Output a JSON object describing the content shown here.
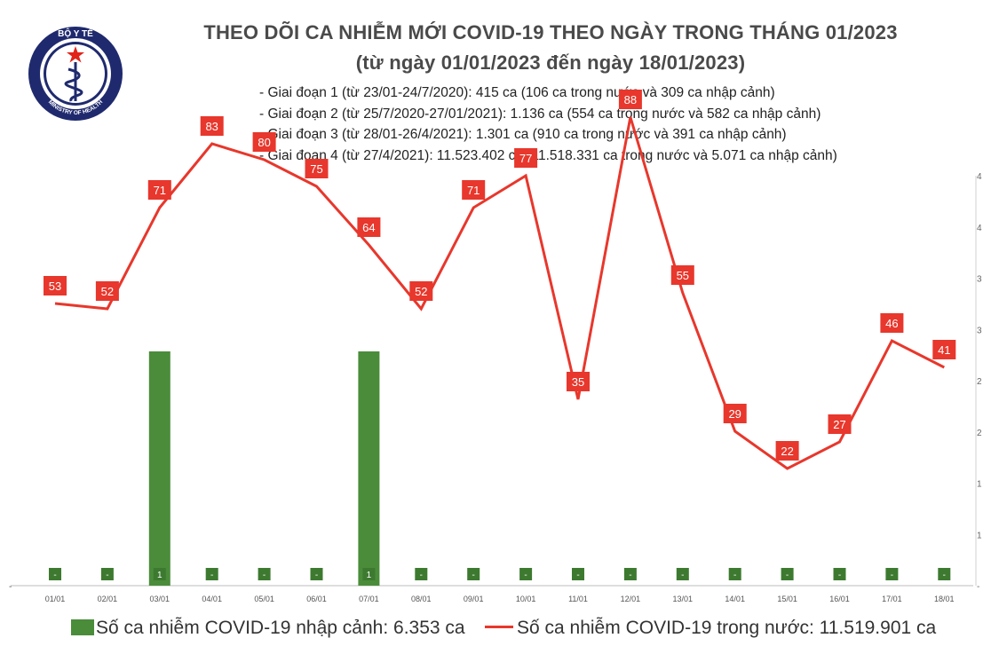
{
  "header": {
    "title_line1": "THEO DÕI CA NHIỄM MỚI COVID-19 THEO NGÀY TRONG THÁNG 01/2023",
    "title_line2": "(từ ngày 01/01/2023 đến ngày 18/01/2023)",
    "phases": [
      "- Giai đoạn 1 (từ 23/01-24/7/2020): 415 ca (106 ca trong nước và 309 ca nhập cảnh)",
      "- Giai đoạn 2 (từ 25/7/2020-27/01/2021): 1.136 ca (554 ca trong nước và 582 ca nhập cảnh)",
      "- Giai đoạn 3 (từ 28/01-26/4/2021): 1.301 ca (910 ca trong nước và 391 ca nhập cảnh)",
      "- Giai đoạn 4 (từ 27/4/2021): 11.523.402 ca (11.518.331 ca trong nước và 5.071 ca nhập cảnh)"
    ]
  },
  "logo": {
    "text_top": "BỘ Y TẾ",
    "text_bottom": "MINISTRY OF HEALTH",
    "colors": {
      "ring": "#1f2a6e",
      "fill": "#ffffff",
      "star": "#e2231a"
    }
  },
  "legend": {
    "bar_label": "Số ca nhiễm COVID-19 nhập cảnh: 6.353 ca",
    "line_label": "Số ca nhiễm COVID-19 trong nước: 11.519.901 ca"
  },
  "chart_data": {
    "type": "bar+line",
    "categories": [
      "01/01",
      "02/01",
      "03/01",
      "04/01",
      "05/01",
      "06/01",
      "07/01",
      "08/01",
      "09/01",
      "10/01",
      "11/01",
      "12/01",
      "13/01",
      "14/01",
      "15/01",
      "16/01",
      "17/01",
      "18/01"
    ],
    "series": [
      {
        "name": "Số ca nhiễm COVID-19 nhập cảnh",
        "type": "bar",
        "color": "#4a8c3a",
        "values": [
          0,
          0,
          1,
          0,
          0,
          0,
          1,
          0,
          0,
          0,
          0,
          0,
          0,
          0,
          0,
          0,
          0,
          0
        ],
        "labels": [
          "-",
          "-",
          "1",
          "-",
          "-",
          "-",
          "1",
          "-",
          "-",
          "-",
          "-",
          "-",
          "-",
          "-",
          "-",
          "-",
          "-",
          "-"
        ]
      },
      {
        "name": "Số ca nhiễm COVID-19 trong nước",
        "type": "line",
        "color": "#e8372c",
        "values": [
          53,
          52,
          71,
          83,
          80,
          75,
          64,
          52,
          71,
          77,
          35,
          88,
          55,
          29,
          22,
          27,
          46,
          41
        ]
      }
    ],
    "axes": {
      "bar_ylim": [
        0,
        1.75
      ],
      "line_ylim": [
        0,
        100
      ],
      "right_axis_tick_labels": [
        "-",
        "1",
        "1",
        "2",
        "2",
        "3",
        "3",
        "4",
        "4"
      ]
    },
    "grid": false,
    "legend_position": "bottom"
  }
}
